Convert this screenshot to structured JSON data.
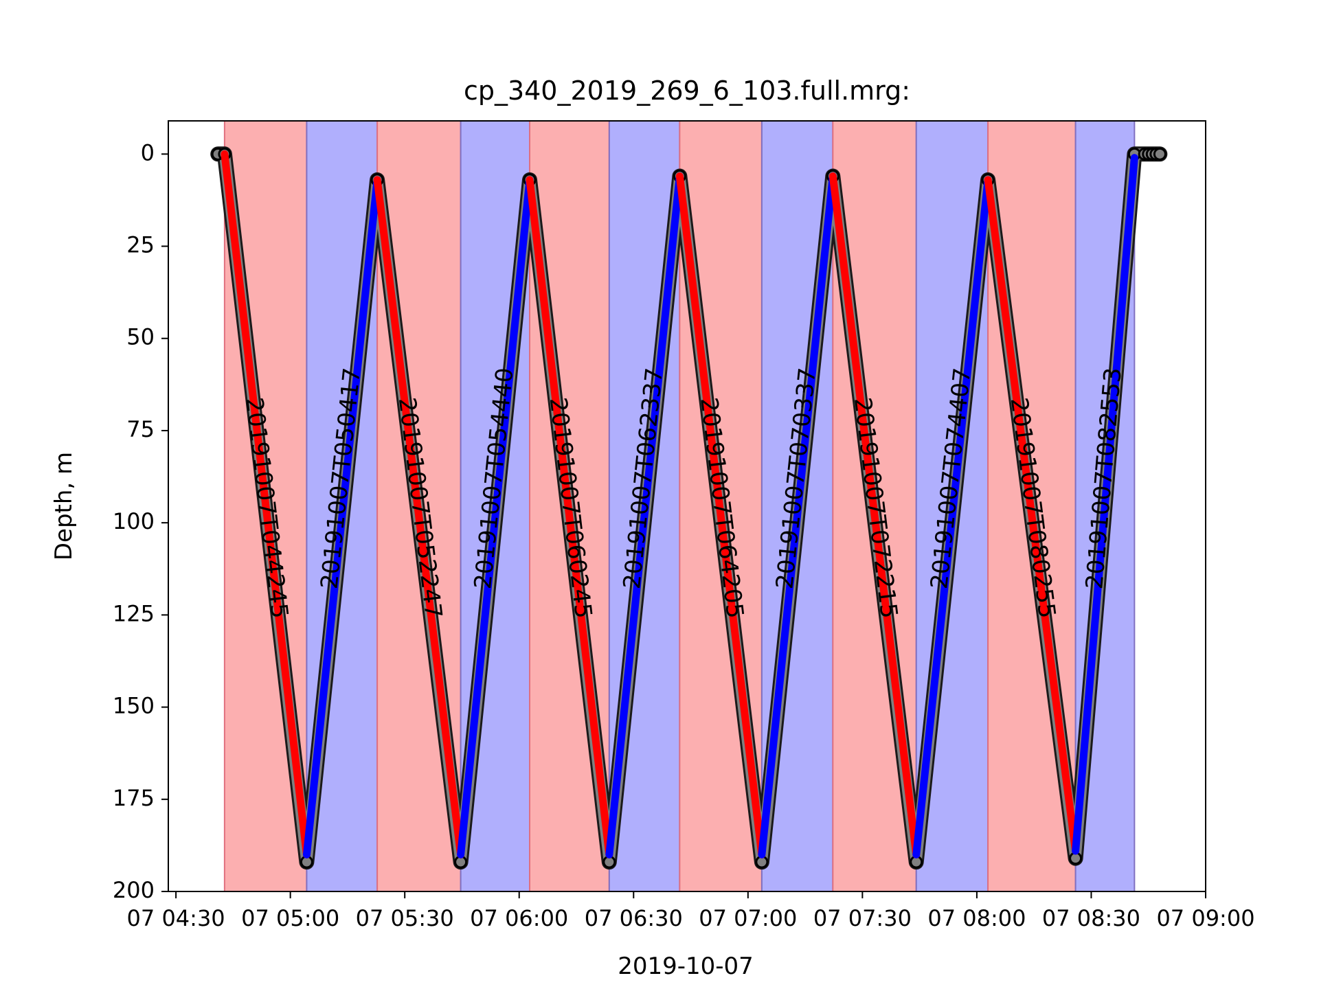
{
  "chart_data": {
    "type": "line",
    "title": "cp_340_2019_269_6_103.full.mrg:",
    "xlabel": "2019-10-07",
    "ylabel": "Depth, m",
    "x_axis": "time",
    "xlim": [
      "2019-10-07T04:28:00",
      "2019-10-07T09:00:00"
    ],
    "ylim": [
      200,
      -9
    ],
    "y_inverted": true,
    "grid": false,
    "x_ticks": [
      "2019-10-07T04:30:00",
      "2019-10-07T05:00:00",
      "2019-10-07T05:30:00",
      "2019-10-07T06:00:00",
      "2019-10-07T06:30:00",
      "2019-10-07T07:00:00",
      "2019-10-07T07:30:00",
      "2019-10-07T08:00:00",
      "2019-10-07T08:30:00",
      "2019-10-07T09:00:00"
    ],
    "x_tick_labels": [
      "07 04:30",
      "07 05:00",
      "07 05:30",
      "07 06:00",
      "07 06:30",
      "07 07:00",
      "07 07:30",
      "07 08:00",
      "07 08:30",
      "07 09:00"
    ],
    "y_ticks": [
      0,
      25,
      50,
      75,
      100,
      125,
      150,
      175,
      200
    ],
    "y_tick_labels": [
      "0",
      "25",
      "50",
      "75",
      "100",
      "125",
      "150",
      "175",
      "200"
    ],
    "colors": {
      "down": "#ff0000",
      "up": "#0000ff",
      "down_band": "#fcafb0",
      "up_band": "#b0affd",
      "raw": "#808080"
    },
    "profiles": [
      {
        "label": "20191007T044245",
        "direction": "down",
        "start": "2019-10-07T04:42:45",
        "end": "2019-10-07T05:04:17",
        "depth_start": 0,
        "depth_end": 190
      },
      {
        "label": "20191007T050417",
        "direction": "up",
        "start": "2019-10-07T05:04:17",
        "end": "2019-10-07T05:22:47",
        "depth_start": 190,
        "depth_end": 7
      },
      {
        "label": "20191007T052247",
        "direction": "down",
        "start": "2019-10-07T05:22:47",
        "end": "2019-10-07T05:44:40",
        "depth_start": 7,
        "depth_end": 190
      },
      {
        "label": "20191007T054440",
        "direction": "up",
        "start": "2019-10-07T05:44:40",
        "end": "2019-10-07T06:02:45",
        "depth_start": 190,
        "depth_end": 7
      },
      {
        "label": "20191007T060245",
        "direction": "down",
        "start": "2019-10-07T06:02:45",
        "end": "2019-10-07T06:23:37",
        "depth_start": 7,
        "depth_end": 190
      },
      {
        "label": "20191007T062337",
        "direction": "up",
        "start": "2019-10-07T06:23:37",
        "end": "2019-10-07T06:42:05",
        "depth_start": 190,
        "depth_end": 6
      },
      {
        "label": "20191007T064205",
        "direction": "down",
        "start": "2019-10-07T06:42:05",
        "end": "2019-10-07T07:03:37",
        "depth_start": 6,
        "depth_end": 190
      },
      {
        "label": "20191007T070337",
        "direction": "up",
        "start": "2019-10-07T07:03:37",
        "end": "2019-10-07T07:22:15",
        "depth_start": 190,
        "depth_end": 6
      },
      {
        "label": "20191007T072215",
        "direction": "down",
        "start": "2019-10-07T07:22:15",
        "end": "2019-10-07T07:44:07",
        "depth_start": 6,
        "depth_end": 190
      },
      {
        "label": "20191007T074407",
        "direction": "up",
        "start": "2019-10-07T07:44:07",
        "end": "2019-10-07T08:02:55",
        "depth_start": 190,
        "depth_end": 7
      },
      {
        "label": "20191007T080255",
        "direction": "down",
        "start": "2019-10-07T08:02:55",
        "end": "2019-10-07T08:25:53",
        "depth_start": 7,
        "depth_end": 189
      },
      {
        "label": "20191007T082553",
        "direction": "up",
        "start": "2019-10-07T08:25:53",
        "end": "2019-10-07T08:41:20",
        "depth_start": 189,
        "depth_end": 1
      }
    ],
    "raw_extremes": [
      {
        "t": "2019-10-07T04:41:00",
        "depth": 0
      },
      {
        "t": "2019-10-07T04:42:45",
        "depth": 0
      },
      {
        "t": "2019-10-07T05:04:17",
        "depth": 192
      },
      {
        "t": "2019-10-07T05:22:47",
        "depth": 7
      },
      {
        "t": "2019-10-07T05:44:40",
        "depth": 192
      },
      {
        "t": "2019-10-07T06:02:45",
        "depth": 7
      },
      {
        "t": "2019-10-07T06:23:37",
        "depth": 192
      },
      {
        "t": "2019-10-07T06:42:05",
        "depth": 6
      },
      {
        "t": "2019-10-07T07:03:37",
        "depth": 192
      },
      {
        "t": "2019-10-07T07:22:15",
        "depth": 6
      },
      {
        "t": "2019-10-07T07:44:07",
        "depth": 192
      },
      {
        "t": "2019-10-07T08:02:55",
        "depth": 7
      },
      {
        "t": "2019-10-07T08:25:53",
        "depth": 191
      },
      {
        "t": "2019-10-07T08:41:20",
        "depth": 0
      },
      {
        "t": "2019-10-07T08:44:00",
        "depth": 0
      },
      {
        "t": "2019-10-07T08:45:00",
        "depth": 0
      },
      {
        "t": "2019-10-07T08:46:00",
        "depth": 0
      },
      {
        "t": "2019-10-07T08:47:00",
        "depth": 0
      },
      {
        "t": "2019-10-07T08:48:00",
        "depth": 0
      }
    ]
  }
}
